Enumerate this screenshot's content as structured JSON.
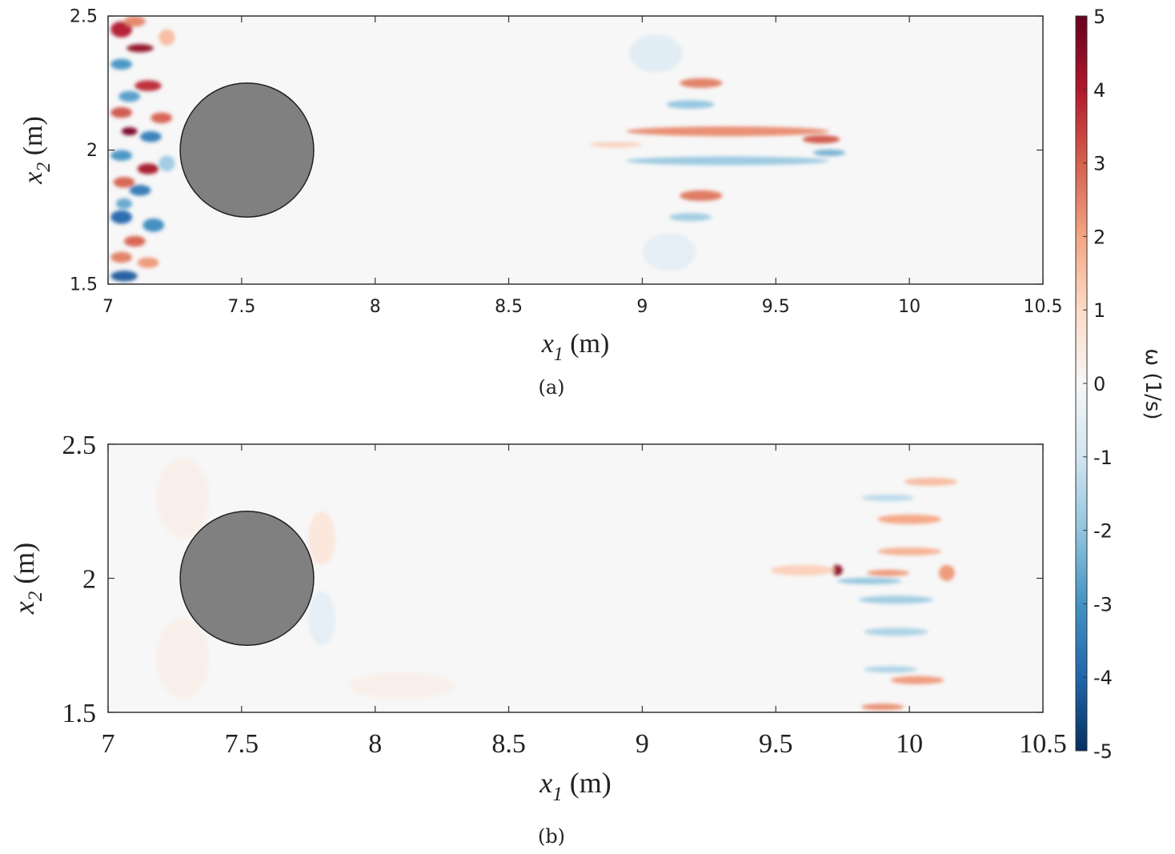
{
  "chart_data": [
    {
      "type": "heatmap",
      "caption": "(a)",
      "xlabel_var": "x",
      "xlabel_sub": "1",
      "xlabel_unit": " (m)",
      "ylabel_var": "x",
      "ylabel_sub": "2",
      "ylabel_unit": " (m)",
      "xlim": [
        7,
        10.5
      ],
      "ylim": [
        1.5,
        2.5
      ],
      "xticks": [
        "7",
        "7.5",
        "8",
        "8.5",
        "9",
        "9.5",
        "10",
        "10.5"
      ],
      "xtick_values": [
        7,
        7.5,
        8,
        8.5,
        9,
        9.5,
        10,
        10.5
      ],
      "yticks": [
        "1.5",
        "2",
        "2.5"
      ],
      "ytick_values": [
        1.5,
        2,
        2.5
      ],
      "cylinder": {
        "cx": 7.52,
        "cy": 2.0,
        "r": 0.25
      },
      "features": [
        {
          "x": 9.32,
          "y": 2.07,
          "sx": 0.38,
          "sy": 0.018,
          "w": 2.4
        },
        {
          "x": 9.67,
          "y": 2.04,
          "sx": 0.07,
          "sy": 0.015,
          "w": 3.2
        },
        {
          "x": 9.32,
          "y": 1.96,
          "sx": 0.38,
          "sy": 0.016,
          "w": -1.9
        },
        {
          "x": 9.7,
          "y": 1.99,
          "sx": 0.06,
          "sy": 0.012,
          "w": -2.4
        },
        {
          "x": 9.22,
          "y": 2.25,
          "sx": 0.08,
          "sy": 0.018,
          "w": 2.6
        },
        {
          "x": 9.18,
          "y": 2.17,
          "sx": 0.09,
          "sy": 0.016,
          "w": -2.0
        },
        {
          "x": 9.22,
          "y": 1.83,
          "sx": 0.08,
          "sy": 0.02,
          "w": 2.7
        },
        {
          "x": 9.18,
          "y": 1.75,
          "sx": 0.08,
          "sy": 0.015,
          "w": -1.8
        },
        {
          "x": 8.9,
          "y": 2.02,
          "sx": 0.1,
          "sy": 0.01,
          "w": 1.2
        },
        {
          "x": 9.05,
          "y": 2.36,
          "sx": 0.1,
          "sy": 0.07,
          "w": -0.6
        },
        {
          "x": 9.1,
          "y": 1.62,
          "sx": 0.1,
          "sy": 0.07,
          "w": -0.5
        },
        {
          "x": 7.05,
          "y": 2.45,
          "sx": 0.04,
          "sy": 0.03,
          "w": 4.0
        },
        {
          "x": 7.12,
          "y": 2.38,
          "sx": 0.05,
          "sy": 0.015,
          "w": 4.5
        },
        {
          "x": 7.05,
          "y": 2.32,
          "sx": 0.04,
          "sy": 0.02,
          "w": -3.0
        },
        {
          "x": 7.15,
          "y": 2.24,
          "sx": 0.05,
          "sy": 0.02,
          "w": 3.8
        },
        {
          "x": 7.08,
          "y": 2.2,
          "sx": 0.04,
          "sy": 0.02,
          "w": -2.8
        },
        {
          "x": 7.05,
          "y": 2.14,
          "sx": 0.04,
          "sy": 0.02,
          "w": 3.2
        },
        {
          "x": 7.2,
          "y": 2.12,
          "sx": 0.04,
          "sy": 0.02,
          "w": 3.0
        },
        {
          "x": 7.08,
          "y": 2.07,
          "sx": 0.03,
          "sy": 0.015,
          "w": 4.8
        },
        {
          "x": 7.16,
          "y": 2.05,
          "sx": 0.04,
          "sy": 0.02,
          "w": -3.5
        },
        {
          "x": 7.05,
          "y": 1.98,
          "sx": 0.04,
          "sy": 0.02,
          "w": -3.0
        },
        {
          "x": 7.15,
          "y": 1.93,
          "sx": 0.04,
          "sy": 0.02,
          "w": 4.2
        },
        {
          "x": 7.06,
          "y": 1.88,
          "sx": 0.04,
          "sy": 0.02,
          "w": 3.0
        },
        {
          "x": 7.12,
          "y": 1.85,
          "sx": 0.04,
          "sy": 0.02,
          "w": -3.6
        },
        {
          "x": 7.06,
          "y": 1.8,
          "sx": 0.03,
          "sy": 0.02,
          "w": -2.6
        },
        {
          "x": 7.05,
          "y": 1.75,
          "sx": 0.04,
          "sy": 0.025,
          "w": -4.0
        },
        {
          "x": 7.17,
          "y": 1.72,
          "sx": 0.04,
          "sy": 0.025,
          "w": -3.2
        },
        {
          "x": 7.1,
          "y": 1.66,
          "sx": 0.04,
          "sy": 0.02,
          "w": 3.0
        },
        {
          "x": 7.05,
          "y": 1.6,
          "sx": 0.04,
          "sy": 0.02,
          "w": 2.6
        },
        {
          "x": 7.15,
          "y": 1.58,
          "sx": 0.04,
          "sy": 0.02,
          "w": 2.2
        },
        {
          "x": 7.06,
          "y": 1.53,
          "sx": 0.05,
          "sy": 0.02,
          "w": -4.2
        },
        {
          "x": 7.1,
          "y": 2.48,
          "sx": 0.04,
          "sy": 0.02,
          "w": 2.5
        },
        {
          "x": 7.22,
          "y": 2.42,
          "sx": 0.03,
          "sy": 0.03,
          "w": 1.6
        },
        {
          "x": 7.22,
          "y": 1.95,
          "sx": 0.03,
          "sy": 0.03,
          "w": -1.8
        }
      ]
    },
    {
      "type": "heatmap",
      "caption": "(b)",
      "xlabel_var": "x",
      "xlabel_sub": "1",
      "xlabel_unit": " (m)",
      "ylabel_var": "x",
      "ylabel_sub": "2",
      "ylabel_unit": " (m)",
      "xlim": [
        7,
        10.5
      ],
      "ylim": [
        1.5,
        2.5
      ],
      "xticks": [
        "7",
        "7.5",
        "8",
        "8.5",
        "9",
        "9.5",
        "10",
        "10.5"
      ],
      "xtick_values": [
        7,
        7.5,
        8,
        8.5,
        9,
        9.5,
        10,
        10.5
      ],
      "yticks": [
        "1.5",
        "2",
        "2.5"
      ],
      "ytick_values": [
        1.5,
        2,
        2.5
      ],
      "cylinder": {
        "cx": 7.52,
        "cy": 2.0,
        "r": 0.25
      },
      "features": [
        {
          "x": 9.73,
          "y": 2.03,
          "sx": 0.02,
          "sy": 0.02,
          "w": 4.5
        },
        {
          "x": 9.92,
          "y": 2.02,
          "sx": 0.08,
          "sy": 0.012,
          "w": 2.2
        },
        {
          "x": 10.14,
          "y": 2.02,
          "sx": 0.03,
          "sy": 0.03,
          "w": 2.2
        },
        {
          "x": 9.6,
          "y": 2.03,
          "sx": 0.12,
          "sy": 0.02,
          "w": 1.2
        },
        {
          "x": 9.85,
          "y": 1.99,
          "sx": 0.12,
          "sy": 0.012,
          "w": -2.0
        },
        {
          "x": 10.0,
          "y": 2.1,
          "sx": 0.12,
          "sy": 0.015,
          "w": 1.8
        },
        {
          "x": 10.0,
          "y": 2.22,
          "sx": 0.12,
          "sy": 0.018,
          "w": 2.0
        },
        {
          "x": 10.08,
          "y": 2.36,
          "sx": 0.1,
          "sy": 0.015,
          "w": 1.6
        },
        {
          "x": 9.92,
          "y": 2.3,
          "sx": 0.1,
          "sy": 0.012,
          "w": -1.4
        },
        {
          "x": 9.95,
          "y": 1.92,
          "sx": 0.14,
          "sy": 0.015,
          "w": -1.8
        },
        {
          "x": 9.95,
          "y": 1.8,
          "sx": 0.12,
          "sy": 0.015,
          "w": -1.6
        },
        {
          "x": 10.03,
          "y": 1.62,
          "sx": 0.1,
          "sy": 0.015,
          "w": 2.2
        },
        {
          "x": 9.93,
          "y": 1.66,
          "sx": 0.1,
          "sy": 0.012,
          "w": -1.6
        },
        {
          "x": 9.9,
          "y": 1.52,
          "sx": 0.08,
          "sy": 0.012,
          "w": 2.4
        },
        {
          "x": 7.8,
          "y": 2.15,
          "sx": 0.05,
          "sy": 0.1,
          "w": 0.6
        },
        {
          "x": 7.8,
          "y": 1.85,
          "sx": 0.05,
          "sy": 0.1,
          "w": -0.5
        },
        {
          "x": 7.28,
          "y": 2.3,
          "sx": 0.1,
          "sy": 0.15,
          "w": 0.3
        },
        {
          "x": 7.28,
          "y": 1.7,
          "sx": 0.1,
          "sy": 0.15,
          "w": 0.3
        },
        {
          "x": 8.1,
          "y": 1.6,
          "sx": 0.2,
          "sy": 0.05,
          "w": 0.3
        }
      ]
    }
  ],
  "colorbar": {
    "label": "ω (1/s)",
    "min": -5,
    "max": 5,
    "ticks": [
      "5",
      "4",
      "3",
      "2",
      "1",
      "0",
      "-1",
      "-2",
      "-3",
      "-4",
      "-5"
    ],
    "tick_values": [
      5,
      4,
      3,
      2,
      1,
      0,
      -1,
      -2,
      -3,
      -4,
      -5
    ],
    "colormap": [
      "#053061",
      "#2166ac",
      "#4393c3",
      "#92c5de",
      "#d1e5f0",
      "#f7f7f7",
      "#fddbc7",
      "#f4a582",
      "#d6604d",
      "#b2182b",
      "#67001f"
    ]
  },
  "colors": {
    "cylinder_fill": "#808080",
    "cylinder_stroke": "#222222",
    "axis": "#333333",
    "background": "#f7f7f7"
  }
}
